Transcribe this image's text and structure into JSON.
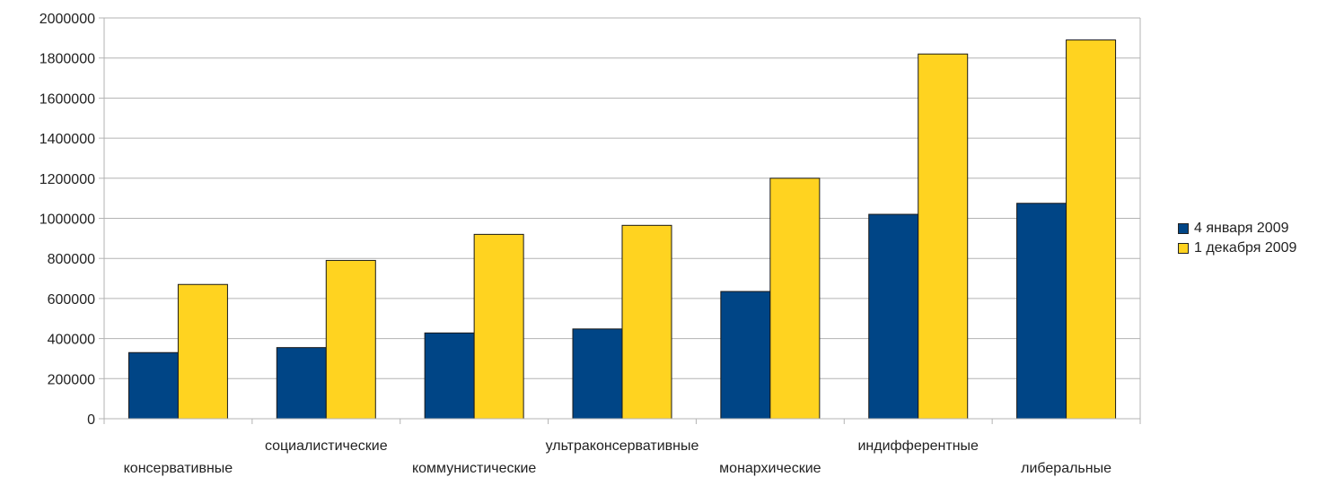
{
  "chart_data": {
    "type": "bar",
    "title": "",
    "xlabel": "",
    "ylabel": "",
    "ylim": [
      0,
      2000000
    ],
    "yticks": [
      0,
      200000,
      400000,
      600000,
      800000,
      1000000,
      1200000,
      1400000,
      1600000,
      1800000,
      2000000
    ],
    "grid": true,
    "legend_position": "right",
    "categories": [
      "консервативные",
      "социалистические",
      "коммунистические",
      "ультраконсервативные",
      "монархические",
      "индифферентные",
      "либеральные"
    ],
    "series": [
      {
        "name": "4 января 2009",
        "color": "#004586",
        "values": [
          330000,
          355000,
          428000,
          448000,
          635000,
          1020000,
          1075000
        ]
      },
      {
        "name": "1 декабря 2009",
        "color": "#ffd320",
        "values": [
          670000,
          790000,
          920000,
          965000,
          1200000,
          1820000,
          1890000
        ]
      }
    ]
  }
}
